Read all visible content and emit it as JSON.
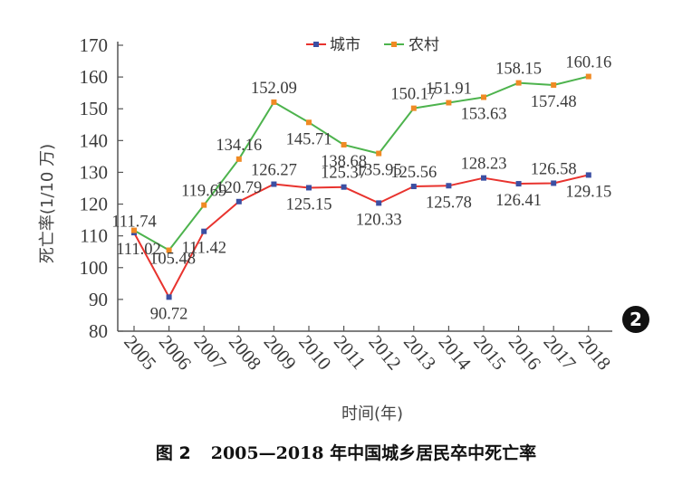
{
  "caption": {
    "label": "图 2",
    "title": "2005—2018 年中国城乡居民卒中死亡率"
  },
  "badge": "2",
  "colors": {
    "urban": "#e8332e",
    "urban_marker": "#3b4fa3",
    "rural": "#4db34d",
    "rural_marker": "#f08a24",
    "axis": "#555555"
  },
  "chart_data": {
    "type": "line",
    "xlabel": "时间(年)",
    "ylabel": "死亡率(1/10 万)",
    "ylim": [
      80,
      170
    ],
    "yticks": [
      80,
      90,
      100,
      110,
      120,
      130,
      140,
      150,
      160,
      170
    ],
    "x": [
      "2005",
      "2006",
      "2007",
      "2008",
      "2009",
      "2010",
      "2011",
      "2012",
      "2013",
      "2014",
      "2015",
      "2016",
      "2017",
      "2018"
    ],
    "legend_position": "top",
    "grid": false,
    "series": [
      {
        "name": "城市",
        "values": [
          111.02,
          90.72,
          111.42,
          120.79,
          126.27,
          125.15,
          125.37,
          120.33,
          125.56,
          125.78,
          128.23,
          126.41,
          126.58,
          129.15
        ],
        "labels": [
          "111.02",
          "90.72",
          "111.42",
          "120.79",
          "126.27",
          "125.15",
          "125.37",
          "120.33",
          "125.56",
          "125.78",
          "128.23",
          "126.41",
          "126.58",
          "129.15"
        ]
      },
      {
        "name": "农村",
        "values": [
          111.74,
          105.48,
          119.69,
          134.16,
          152.09,
          145.71,
          138.68,
          135.95,
          150.17,
          151.91,
          153.63,
          158.15,
          157.48,
          160.16
        ],
        "labels": [
          "111.74",
          "105.48",
          "119.69",
          "134.16",
          "152.09",
          "145.71",
          "138.68",
          "135.95",
          "150.17",
          "151.91",
          "153.63",
          "158.15",
          "157.48",
          "160.16"
        ]
      }
    ]
  }
}
